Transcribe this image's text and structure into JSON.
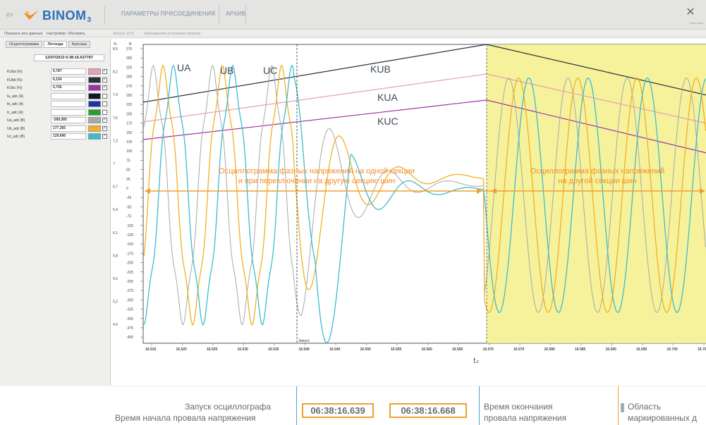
{
  "titlebar": {
    "logo_text": "BINOM",
    "logo_sub": "3",
    "tabs": [
      "ПАРАМЕТРЫ ПРИСОЕДИНЕНИЯ",
      "Архив"
    ],
    "settings_caption": "Настройки"
  },
  "menustrip": {
    "items": [
      "Показать все данные",
      "Настройки",
      "Обновить",
      "Запуск 13:3",
      "Нахождение установки запуска"
    ]
  },
  "leftpanel": {
    "tabs": [
      "Осциллограммы",
      "Легенда",
      "Курсоры"
    ],
    "active_tab": 1,
    "timestamp": "12/07/2013 6:38:16.637787",
    "channels": [
      {
        "name": "KUba (%)",
        "value": "6,787",
        "color": "#e8a0b4",
        "checked": true
      },
      {
        "name": "KUbb (%)",
        "value": "6,154",
        "color": "#2a3040",
        "checked": true
      },
      {
        "name": "KUbc (%)",
        "value": "5,755",
        "color": "#a030a8",
        "checked": true
      },
      {
        "name": "Ia_adc (A)",
        "value": "",
        "color": "#101830",
        "checked": false
      },
      {
        "name": "Ib_adc (A)",
        "value": "",
        "color": "#1d33a8",
        "checked": false
      },
      {
        "name": "Ic_adc (A)",
        "value": "",
        "color": "#28a030",
        "checked": false
      },
      {
        "name": "Ua_adc (В)",
        "value": "-289,385",
        "color": "#a8a8a8",
        "checked": true
      },
      {
        "name": "Ub_adc (В)",
        "value": "177,365",
        "color": "#f2b022",
        "checked": true
      },
      {
        "name": "Uc_adc (В)",
        "value": "129,690",
        "color": "#3cbcd0",
        "checked": true
      }
    ]
  },
  "chart_data": {
    "type": "line",
    "title": "",
    "ylabel_left": "%",
    "ylabel_right": "В",
    "y_left_ticks": [
      "8,5",
      "8,4",
      "8,3",
      "8,2",
      "8,1",
      "8",
      "7,9",
      "7,8",
      "7,7",
      "7,6",
      "7,5",
      "7,4",
      "7,3",
      "7,2",
      "7,1",
      "7",
      "6,9",
      "6,8",
      "6,7",
      "6,6",
      "6,5",
      "6,4",
      "6,3",
      "6,2",
      "6,1",
      "6",
      "5,9",
      "5,8",
      "5,7",
      "5,6",
      "5,5",
      "5,4",
      "5,3",
      "5,2",
      "5,1",
      "5",
      "4,9",
      "4,8"
    ],
    "y_left_labels": [
      "8,5",
      "8,2",
      "7,9",
      "7,6",
      "7,3",
      "7",
      "6,7",
      "6,4",
      "6,1",
      "5,8",
      "5,5",
      "5,2",
      "4,9"
    ],
    "y_right_ticks": [
      "375",
      "350",
      "325",
      "300",
      "275",
      "250",
      "225",
      "200",
      "175",
      "150",
      "125",
      "100",
      "75",
      "50",
      "25",
      "0",
      "-25",
      "-50",
      "-75",
      "-100",
      "-125",
      "-150",
      "-175",
      "-200",
      "-225",
      "-250",
      "-275",
      "-300",
      "-325",
      "-350",
      "-375",
      "-400"
    ],
    "x_ticks": [
      "16.515",
      "16.520",
      "16.525",
      "16.530",
      "16.535",
      "16.540",
      "16.545",
      "16.550",
      "16.555",
      "16.560",
      "16.565",
      "16.570",
      "16.575",
      "16.580",
      "16.585",
      "16.590",
      "16.595",
      "16.700",
      "16.705"
    ],
    "xlabel": "t₂",
    "series": [
      {
        "name": "UA",
        "color": "#a8a8a8"
      },
      {
        "name": "UB",
        "color": "#f2b022"
      },
      {
        "name": "UC",
        "color": "#3cbcd0"
      },
      {
        "name": "KUB",
        "color": "#2a3040"
      },
      {
        "name": "KUA",
        "color": "#e8a0b4"
      },
      {
        "name": "KUC",
        "color": "#a030a8"
      }
    ],
    "trigger_label": "Запуск",
    "annotation_left": [
      "Осциллограмма фазных напряжений на одной секции",
      "и при переключении на другую секцию шин"
    ],
    "annotation_right": [
      "Осциллограмма фазных напряжений",
      "на другой секции шин"
    ]
  },
  "bottom": {
    "launch_label": "Запуск осциллографа",
    "start_label": "Время начала провала напряжения",
    "start_time": "06:38:16.639",
    "end_time": "06:38:16.668",
    "end_label_1": "Время окончания",
    "end_label_2": "провала напряжения",
    "area_label_1": "Область",
    "area_label_2": "маркированных д"
  }
}
